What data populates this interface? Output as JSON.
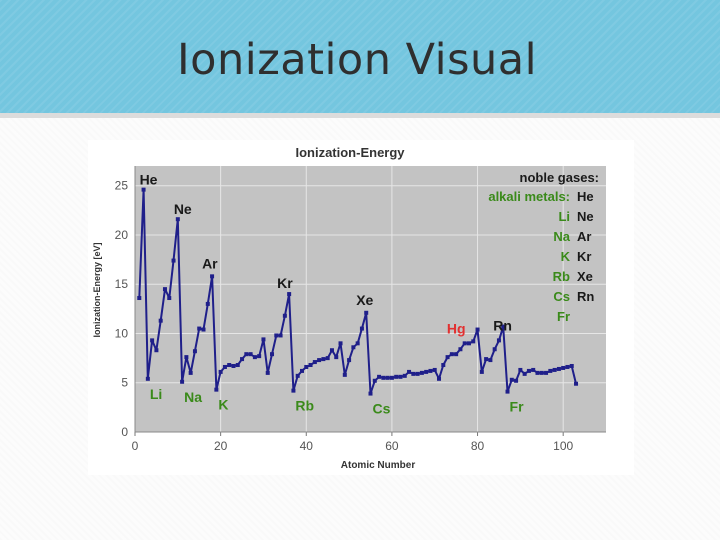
{
  "slide": {
    "title": "Ionization Visual"
  },
  "colors": {
    "header_band": "#74c6df",
    "plot_background": "#c3c3c3",
    "series_line": "#1f1f8a",
    "noble_label": "#1a1a1a",
    "alkali_label": "#3a8a1a",
    "mercury_label": "#e23030"
  },
  "chart_data": {
    "type": "line",
    "title": "Ionization-Energy",
    "xlabel": "Atomic Number",
    "ylabel": "Ionization-Energy [eV]",
    "xlim": [
      0,
      110
    ],
    "ylim": [
      0,
      27
    ],
    "xticks": [
      0,
      20,
      40,
      60,
      80,
      100
    ],
    "yticks": [
      0,
      5,
      10,
      15,
      20,
      25
    ],
    "grid": true,
    "legend": {
      "placement": "top-right",
      "noble_title": "noble gases:",
      "alkali_title": "alkali metals:",
      "noble_items": [
        "He",
        "Ne",
        "Ar",
        "Kr",
        "Xe",
        "Rn"
      ],
      "alkali_items": [
        "Li",
        "Na",
        "K",
        "Rb",
        "Cs",
        "Fr"
      ]
    },
    "series": [
      {
        "x": [
          1,
          2,
          3,
          4,
          5,
          6,
          7,
          8,
          9,
          10,
          11,
          12,
          13,
          14,
          15,
          16,
          17,
          18,
          19,
          20,
          21,
          22,
          23,
          24,
          25,
          26,
          27,
          28,
          29,
          30,
          31,
          32,
          33,
          34,
          35,
          36,
          37,
          38,
          39,
          40,
          41,
          42,
          43,
          44,
          45,
          46,
          47,
          48,
          49,
          50,
          51,
          52,
          53,
          54,
          55,
          56,
          57,
          58,
          59,
          60,
          61,
          62,
          63,
          64,
          65,
          66,
          67,
          68,
          69,
          70,
          71,
          72,
          73,
          74,
          75,
          76,
          77,
          78,
          79,
          80,
          81,
          82,
          83,
          84,
          85,
          86,
          87,
          88,
          89,
          90,
          91,
          92,
          93,
          94,
          95,
          96,
          97,
          98,
          99,
          100,
          101,
          102,
          103
        ],
        "y": [
          13.6,
          24.6,
          5.4,
          9.3,
          8.3,
          11.3,
          14.5,
          13.6,
          17.4,
          21.6,
          5.1,
          7.6,
          6.0,
          8.2,
          10.5,
          10.4,
          13.0,
          15.8,
          4.3,
          6.1,
          6.6,
          6.8,
          6.7,
          6.8,
          7.4,
          7.9,
          7.9,
          7.6,
          7.7,
          9.4,
          6.0,
          7.9,
          9.8,
          9.8,
          11.8,
          14.0,
          4.2,
          5.7,
          6.2,
          6.6,
          6.8,
          7.1,
          7.3,
          7.4,
          7.5,
          8.3,
          7.6,
          9.0,
          5.8,
          7.3,
          8.6,
          9.0,
          10.5,
          12.1,
          3.9,
          5.2,
          5.6,
          5.5,
          5.5,
          5.5,
          5.6,
          5.6,
          5.7,
          6.1,
          5.9,
          5.9,
          6.0,
          6.1,
          6.2,
          6.3,
          5.4,
          6.8,
          7.6,
          7.9,
          7.9,
          8.4,
          9.0,
          9.0,
          9.2,
          10.4,
          6.1,
          7.4,
          7.3,
          8.4,
          9.3,
          10.7,
          4.1,
          5.3,
          5.2,
          6.3,
          5.9,
          6.2,
          6.3,
          6.0,
          6.0,
          6.0,
          6.2,
          6.3,
          6.4,
          6.5,
          6.6,
          6.7,
          4.9
        ]
      }
    ],
    "annotations": [
      {
        "text": "He",
        "group": "noble",
        "x": 2,
        "y": 24.6
      },
      {
        "text": "Ne",
        "group": "noble",
        "x": 10,
        "y": 21.6
      },
      {
        "text": "Ar",
        "group": "noble",
        "x": 18,
        "y": 15.8
      },
      {
        "text": "Kr",
        "group": "noble",
        "x": 36,
        "y": 14.0
      },
      {
        "text": "Xe",
        "group": "noble",
        "x": 54,
        "y": 12.1
      },
      {
        "text": "Rn",
        "group": "noble",
        "x": 86,
        "y": 10.7
      },
      {
        "text": "Hg",
        "group": "mercury",
        "x": 80,
        "y": 10.4
      },
      {
        "text": "Li",
        "group": "alkali",
        "x": 3,
        "y": 5.4
      },
      {
        "text": "Na",
        "group": "alkali",
        "x": 11,
        "y": 5.1
      },
      {
        "text": "K",
        "group": "alkali",
        "x": 19,
        "y": 4.3
      },
      {
        "text": "Rb",
        "group": "alkali",
        "x": 37,
        "y": 4.2
      },
      {
        "text": "Cs",
        "group": "alkali",
        "x": 55,
        "y": 3.9
      },
      {
        "text": "Fr",
        "group": "alkali",
        "x": 87,
        "y": 4.1
      }
    ]
  }
}
